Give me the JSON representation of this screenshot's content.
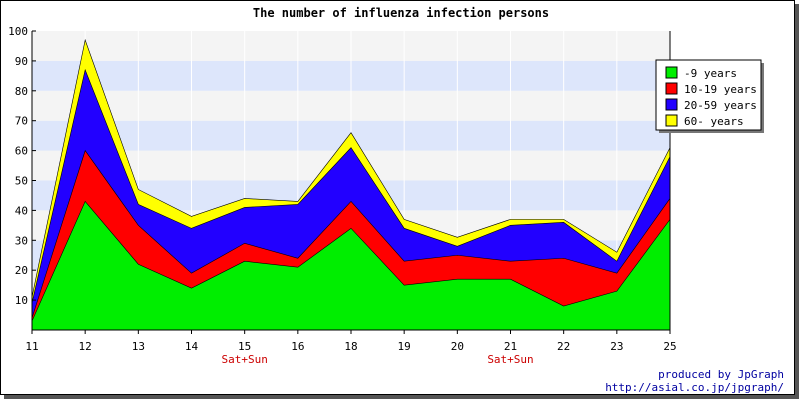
{
  "chart_data": {
    "type": "area",
    "stacked": true,
    "title": "The number of influenza infection persons",
    "xlabel": "",
    "ylabel": "",
    "x": [
      "11",
      "12",
      "13",
      "14",
      "15",
      "16",
      "18",
      "19",
      "20",
      "21",
      "22",
      "23",
      "25"
    ],
    "x_sublabels": [
      "",
      "",
      "",
      "",
      "Sat+Sun",
      "",
      "",
      "",
      "",
      "Sat+Sun",
      "",
      "",
      ""
    ],
    "ylim": [
      0,
      100
    ],
    "yticks": [
      10,
      20,
      30,
      40,
      50,
      60,
      70,
      80,
      90,
      100
    ],
    "grid": true,
    "legend_position": "top-right",
    "series": [
      {
        "name": "-9 years",
        "color": "#00ee00",
        "values": [
          3,
          43,
          22,
          14,
          23,
          21,
          34,
          15,
          17,
          17,
          8,
          13,
          37
        ]
      },
      {
        "name": "10-19 years",
        "color": "#ff0000",
        "values": [
          1,
          17,
          13,
          5,
          6,
          3,
          9,
          8,
          8,
          6,
          16,
          6,
          7
        ]
      },
      {
        "name": "20-59 years",
        "color": "#2200ff",
        "values": [
          5,
          27,
          7,
          15,
          12,
          18,
          18,
          11,
          3,
          12,
          12,
          4,
          14
        ]
      },
      {
        "name": "60- years",
        "color": "#ffff00",
        "values": [
          2,
          10,
          5,
          4,
          3,
          1,
          5,
          3,
          3,
          2,
          1,
          3,
          3
        ]
      }
    ]
  },
  "credits": {
    "line1": "produced by JpGraph",
    "line2": "http://asial.co.jp/jpgraph/"
  }
}
